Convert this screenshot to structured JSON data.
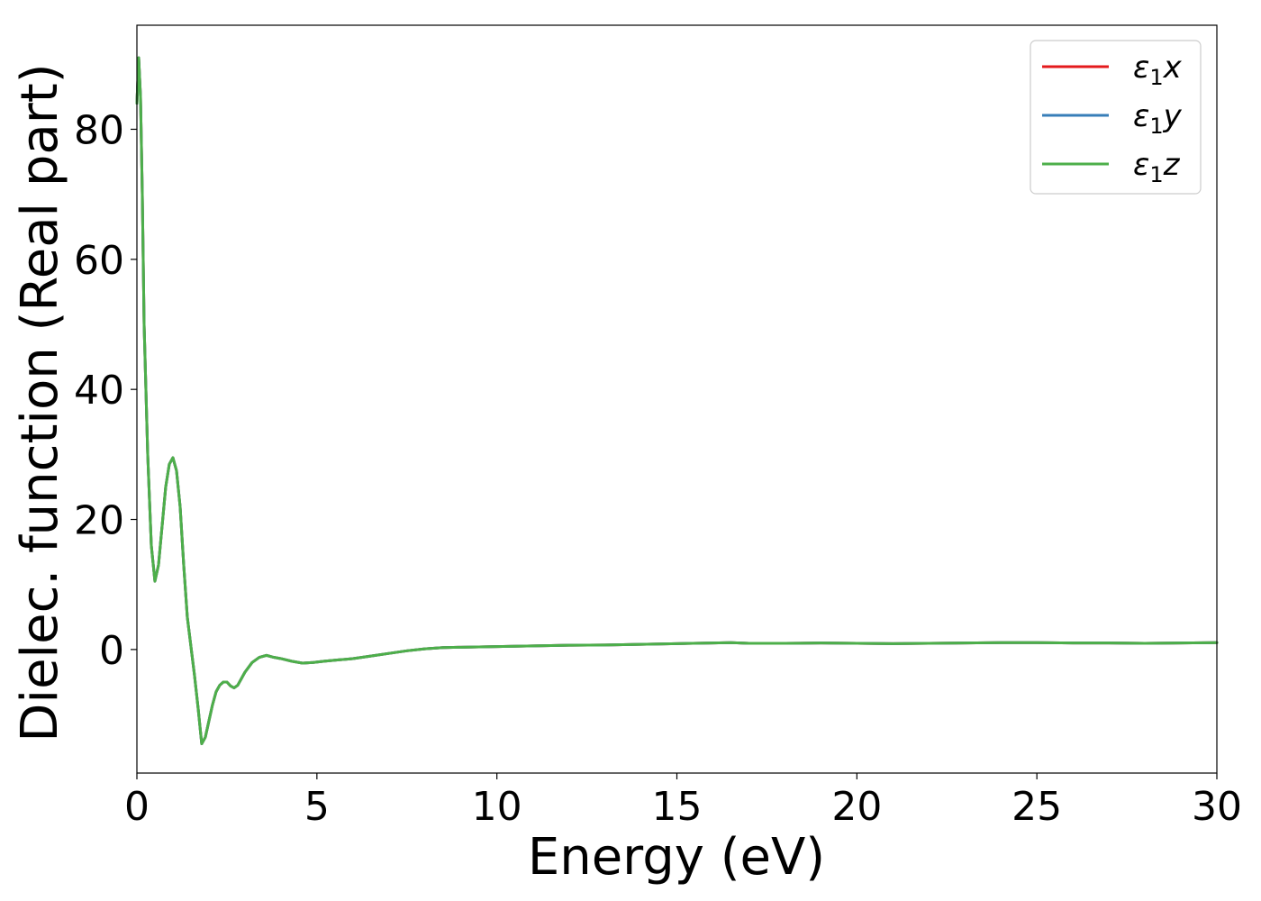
{
  "chart_data": {
    "type": "line",
    "title": "",
    "xlabel": "Energy (eV)",
    "ylabel": "Dielec. function (Real part)",
    "xlim": [
      0,
      30
    ],
    "ylim": [
      -19,
      96
    ],
    "xticks": [
      0,
      5,
      10,
      15,
      20,
      25,
      30
    ],
    "yticks": [
      0,
      20,
      40,
      60,
      80
    ],
    "grid": false,
    "legend_position": "top-right",
    "series": [
      {
        "name": "ε₁x",
        "legend_base": "ε",
        "legend_sub": "1",
        "legend_suffix": "x",
        "color": "#e41a1c",
        "x": [
          0,
          0.05,
          0.1,
          0.15,
          0.2,
          0.3,
          0.4,
          0.5,
          0.6,
          0.7,
          0.8,
          0.9,
          1.0,
          1.1,
          1.2,
          1.3,
          1.4,
          1.5,
          1.6,
          1.7,
          1.8,
          1.9,
          2.0,
          2.1,
          2.2,
          2.3,
          2.4,
          2.5,
          2.6,
          2.7,
          2.8,
          2.9,
          3.0,
          3.2,
          3.4,
          3.6,
          3.8,
          4.0,
          4.3,
          4.6,
          4.9,
          5.2,
          5.6,
          6.0,
          6.5,
          7.0,
          7.5,
          8.0,
          8.5,
          9.0,
          10.0,
          11.0,
          12.0,
          13.0,
          14.0,
          15.0,
          16.0,
          16.5,
          17.0,
          18.0,
          19.0,
          20.0,
          21.0,
          22.0,
          23.0,
          24.0,
          25.0,
          26.0,
          27.0,
          28.0,
          29.0,
          30.0
        ],
        "y": [
          84,
          91,
          85,
          70,
          50,
          30,
          16,
          10.5,
          13,
          19,
          25,
          28.5,
          29.5,
          27.5,
          22,
          13,
          5,
          0.5,
          -4,
          -9,
          -14.5,
          -13.5,
          -11,
          -8.5,
          -6.5,
          -5.5,
          -5,
          -5,
          -5.6,
          -5.9,
          -5.5,
          -4.5,
          -3.5,
          -2,
          -1.2,
          -0.9,
          -1.2,
          -1.4,
          -1.8,
          -2.1,
          -2.0,
          -1.8,
          -1.6,
          -1.4,
          -1.0,
          -0.6,
          -0.2,
          0.1,
          0.3,
          0.35,
          0.45,
          0.55,
          0.65,
          0.7,
          0.8,
          0.9,
          1.0,
          1.05,
          0.95,
          0.95,
          1.0,
          0.95,
          0.9,
          0.95,
          1.0,
          1.05,
          1.05,
          1.0,
          1.0,
          0.95,
          1.0,
          1.05
        ]
      },
      {
        "name": "ε₁y",
        "legend_base": "ε",
        "legend_sub": "1",
        "legend_suffix": "y",
        "color": "#377eb8",
        "x": [
          0,
          0.05,
          0.1,
          0.15,
          0.2,
          0.3,
          0.4,
          0.5,
          0.6,
          0.7,
          0.8,
          0.9,
          1.0,
          1.1,
          1.2,
          1.3,
          1.4,
          1.5,
          1.6,
          1.7,
          1.8,
          1.9,
          2.0,
          2.1,
          2.2,
          2.3,
          2.4,
          2.5,
          2.6,
          2.7,
          2.8,
          2.9,
          3.0,
          3.2,
          3.4,
          3.6,
          3.8,
          4.0,
          4.3,
          4.6,
          4.9,
          5.2,
          5.6,
          6.0,
          6.5,
          7.0,
          7.5,
          8.0,
          8.5,
          9.0,
          10.0,
          11.0,
          12.0,
          13.0,
          14.0,
          15.0,
          16.0,
          16.5,
          17.0,
          18.0,
          19.0,
          20.0,
          21.0,
          22.0,
          23.0,
          24.0,
          25.0,
          26.0,
          27.0,
          28.0,
          29.0,
          30.0
        ],
        "y": [
          84,
          91,
          85,
          70,
          50,
          30,
          16,
          10.5,
          13,
          19,
          25,
          28.5,
          29.5,
          27.5,
          22,
          13,
          5,
          0.5,
          -4,
          -9,
          -14.5,
          -13.5,
          -11,
          -8.5,
          -6.5,
          -5.5,
          -5,
          -5,
          -5.6,
          -5.9,
          -5.5,
          -4.5,
          -3.5,
          -2,
          -1.2,
          -0.9,
          -1.2,
          -1.4,
          -1.8,
          -2.1,
          -2.0,
          -1.8,
          -1.6,
          -1.4,
          -1.0,
          -0.6,
          -0.2,
          0.1,
          0.3,
          0.35,
          0.45,
          0.55,
          0.65,
          0.7,
          0.8,
          0.9,
          1.0,
          1.05,
          0.95,
          0.95,
          1.0,
          0.95,
          0.9,
          0.95,
          1.0,
          1.05,
          1.05,
          1.0,
          1.0,
          0.95,
          1.0,
          1.05
        ]
      },
      {
        "name": "ε₁z",
        "legend_base": "ε",
        "legend_sub": "1",
        "legend_suffix": "z",
        "color": "#4daf4a",
        "x": [
          0,
          0.05,
          0.1,
          0.15,
          0.2,
          0.3,
          0.4,
          0.5,
          0.6,
          0.7,
          0.8,
          0.9,
          1.0,
          1.1,
          1.2,
          1.3,
          1.4,
          1.5,
          1.6,
          1.7,
          1.8,
          1.9,
          2.0,
          2.1,
          2.2,
          2.3,
          2.4,
          2.5,
          2.6,
          2.7,
          2.8,
          2.9,
          3.0,
          3.2,
          3.4,
          3.6,
          3.8,
          4.0,
          4.3,
          4.6,
          4.9,
          5.2,
          5.6,
          6.0,
          6.5,
          7.0,
          7.5,
          8.0,
          8.5,
          9.0,
          10.0,
          11.0,
          12.0,
          13.0,
          14.0,
          15.0,
          16.0,
          16.5,
          17.0,
          18.0,
          19.0,
          20.0,
          21.0,
          22.0,
          23.0,
          24.0,
          25.0,
          26.0,
          27.0,
          28.0,
          29.0,
          30.0
        ],
        "y": [
          84,
          91,
          85,
          70,
          50,
          30,
          16,
          10.5,
          13,
          19,
          25,
          28.5,
          29.5,
          27.5,
          22,
          13,
          5,
          0.5,
          -4,
          -9,
          -14.5,
          -13.5,
          -11,
          -8.5,
          -6.5,
          -5.5,
          -5,
          -5,
          -5.6,
          -5.9,
          -5.5,
          -4.5,
          -3.5,
          -2,
          -1.2,
          -0.9,
          -1.2,
          -1.4,
          -1.8,
          -2.1,
          -2.0,
          -1.8,
          -1.6,
          -1.4,
          -1.0,
          -0.6,
          -0.2,
          0.1,
          0.3,
          0.35,
          0.45,
          0.55,
          0.65,
          0.7,
          0.8,
          0.9,
          1.0,
          1.05,
          0.95,
          0.95,
          1.0,
          0.95,
          0.9,
          0.95,
          1.0,
          1.05,
          1.05,
          1.0,
          1.0,
          0.95,
          1.0,
          1.05
        ]
      }
    ]
  }
}
